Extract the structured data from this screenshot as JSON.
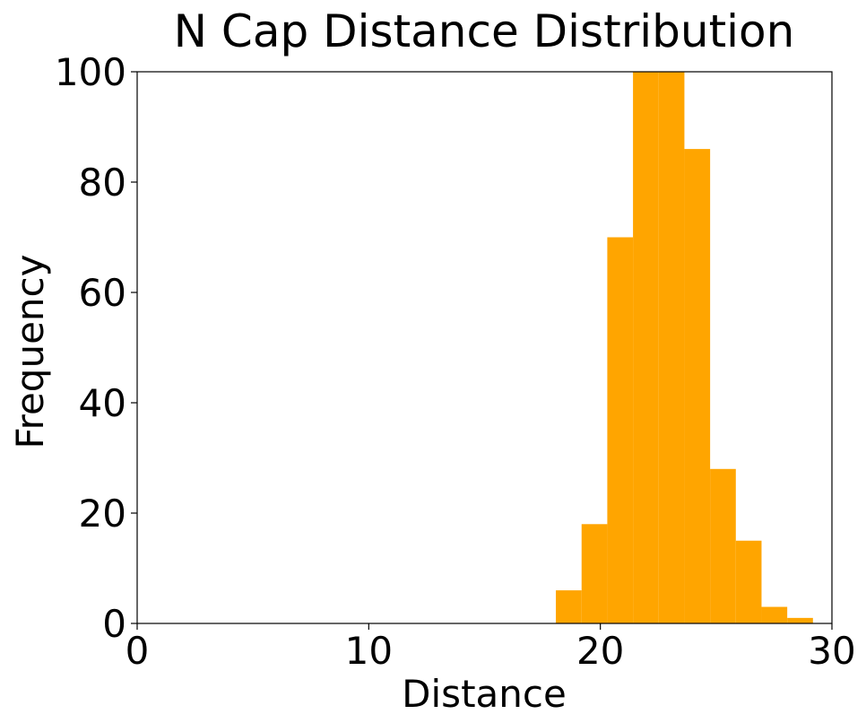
{
  "chart_data": {
    "type": "histogram",
    "title": "N Cap Distance Distribution",
    "x_label": "Distance",
    "y_label": "Frequency",
    "bins": [
      18.08,
      19.19,
      20.3,
      21.41,
      22.52,
      23.63,
      24.74,
      25.85,
      26.96,
      28.07,
      29.18
    ],
    "counts": [
      6,
      18,
      70,
      110,
      104,
      86,
      28,
      15,
      3,
      1
    ],
    "color": "#ffa500",
    "xlim": [
      0,
      30
    ],
    "xticks": [
      0,
      10,
      20,
      30
    ],
    "ylim": [
      0,
      100
    ],
    "yticks": [
      0,
      20,
      40,
      60,
      80,
      100
    ]
  }
}
